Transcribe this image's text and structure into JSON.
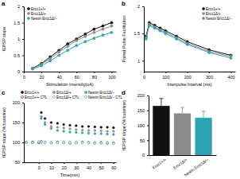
{
  "chart_data": [
    {
      "type": "line",
      "label": "a",
      "x_label": "Stimulation intensity(uA)",
      "y_label": "fEPSP slope",
      "x": [
        10,
        20,
        30,
        40,
        50,
        60,
        70,
        80,
        90,
        100
      ],
      "xlim": [
        0,
        105
      ],
      "xticks": [
        0,
        20,
        40,
        60,
        80,
        100
      ],
      "ylim": [
        0,
        2
      ],
      "yticks": [
        0,
        0.5,
        1,
        1.5,
        2
      ],
      "legend": "top-left",
      "series": [
        {
          "name": "Ercc1+/+",
          "color": "#111111",
          "marker": "circle",
          "values": [
            0.1,
            0.25,
            0.45,
            0.65,
            0.85,
            1.0,
            1.15,
            1.3,
            1.4,
            1.5
          ]
        },
        {
          "name": "Ercc1Δ/+",
          "color": "#8c8c8c",
          "marker": "circle",
          "values": [
            0.1,
            0.22,
            0.4,
            0.6,
            0.78,
            0.95,
            1.08,
            1.2,
            1.3,
            1.4
          ]
        },
        {
          "name": "Nestin Ercc1Δ/−",
          "color": "#2aa3b5",
          "marker": "circle",
          "values": [
            0.08,
            0.18,
            0.33,
            0.5,
            0.65,
            0.8,
            0.92,
            1.02,
            1.12,
            1.2
          ]
        }
      ]
    },
    {
      "type": "line",
      "label": "b",
      "x_label": "Interpulse Interval (ms)",
      "y_label": "Paired Pulse Facilitation",
      "x": [
        10,
        25,
        50,
        75,
        100,
        150,
        200,
        300,
        400
      ],
      "xlim": [
        0,
        420
      ],
      "xticks": [
        0,
        100,
        200,
        300,
        400
      ],
      "ylim": [
        0.8,
        2
      ],
      "yticks": [
        1,
        1.5,
        2
      ],
      "legend": "top-right",
      "series": [
        {
          "name": "Ercc1+/+",
          "color": "#111111",
          "marker": "circle",
          "values": [
            1.45,
            1.7,
            1.65,
            1.6,
            1.55,
            1.45,
            1.35,
            1.2,
            1.1
          ]
        },
        {
          "name": "Ercc1Δ/+",
          "color": "#8c8c8c",
          "marker": "circle",
          "values": [
            1.42,
            1.67,
            1.62,
            1.57,
            1.52,
            1.42,
            1.32,
            1.17,
            1.08
          ]
        },
        {
          "name": "Nestin Ercc1Δ/−",
          "color": "#2aa3b5",
          "marker": "circle",
          "values": [
            1.4,
            1.65,
            1.6,
            1.55,
            1.5,
            1.4,
            1.3,
            1.15,
            1.05
          ]
        }
      ]
    },
    {
      "type": "scatter",
      "label": "c",
      "x_label": "Time(min)",
      "y_label": "fEPSP slope (% baseline)",
      "x": [
        -10,
        -5,
        0,
        2,
        5,
        10,
        15,
        20,
        25,
        30,
        35,
        40,
        45,
        50,
        55,
        60
      ],
      "xlim": [
        -12,
        62
      ],
      "xticks": [
        0,
        10,
        20,
        30,
        40,
        50,
        60
      ],
      "ylim": [
        50,
        200
      ],
      "yticks": [
        50,
        100,
        150,
        200
      ],
      "legend": "top",
      "series": [
        {
          "name": "Ercc1+/+",
          "color": "#111111",
          "marker": "circle",
          "values": [
            100,
            100,
            100,
            175,
            160,
            150,
            148,
            145,
            143,
            142,
            140,
            140,
            139,
            138,
            138,
            137
          ]
        },
        {
          "name": "Ercc1Δ/+",
          "color": "#8c8c8c",
          "marker": "circle",
          "values": [
            100,
            100,
            100,
            165,
            150,
            140,
            138,
            136,
            134,
            132,
            131,
            130,
            130,
            129,
            128,
            128
          ]
        },
        {
          "name": "Nestin Ercc1Δ/−",
          "color": "#2aa3b5",
          "marker": "circle",
          "values": [
            100,
            100,
            100,
            160,
            145,
            135,
            130,
            128,
            126,
            125,
            124,
            123,
            122,
            122,
            121,
            120
          ]
        },
        {
          "name": "Ercc1+/+ CTL",
          "color": "#111111",
          "marker": "open",
          "values": [
            100,
            101,
            99,
            102,
            100,
            99,
            101,
            100,
            98,
            99,
            101,
            100,
            99,
            100,
            98,
            99
          ]
        },
        {
          "name": "Ercc1Δ/+ CTL",
          "color": "#8c8c8c",
          "marker": "open",
          "values": [
            100,
            99,
            101,
            100,
            101,
            100,
            99,
            98,
            100,
            101,
            99,
            98,
            100,
            99,
            100,
            98
          ]
        },
        {
          "name": "Nestin Ercc1Δ/− CTL",
          "color": "#2aa3b5",
          "marker": "open",
          "values": [
            100,
            100,
            102,
            101,
            99,
            98,
            100,
            101,
            99,
            98,
            100,
            99,
            97,
            98,
            99,
            97
          ]
        }
      ]
    },
    {
      "type": "bar",
      "label": "d",
      "y_label": "fEPSP slope (% baseline)",
      "categories": [
        "Ercc1+/+",
        "Ercc1Δ/+",
        "Nestin Ercc1Δ/−"
      ],
      "values": [
        165,
        140,
        125
      ],
      "errors": [
        25,
        20,
        22
      ],
      "colors": [
        "#111111",
        "#8c8c8c",
        "#2aa3b5"
      ],
      "ylim": [
        0,
        200
      ],
      "yticks": [
        0,
        50,
        100,
        150,
        200
      ]
    }
  ]
}
